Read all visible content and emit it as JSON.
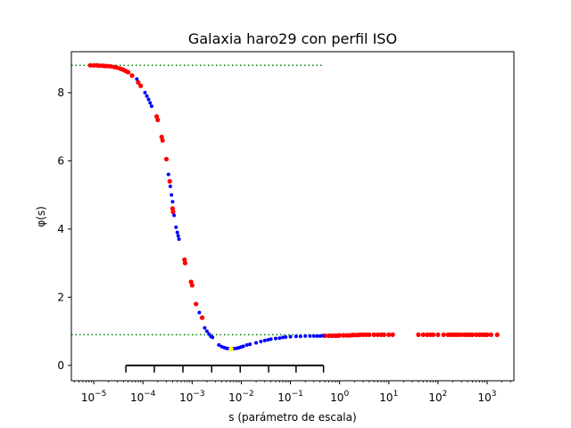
{
  "chart_data": {
    "type": "scatter",
    "title": "Galaxia haro29 con perfil ISO",
    "xlabel": "s (parámetro de escala)",
    "ylabel": "φ(s)",
    "xscale": "log",
    "xlim": [
      3.5e-06,
      3500
    ],
    "ylim": [
      -0.45,
      9.2
    ],
    "yticks": [
      0,
      2,
      4,
      6,
      8
    ],
    "xtick_labels": [
      {
        "base": "10",
        "exp": "−5",
        "value": 1e-05
      },
      {
        "base": "10",
        "exp": "−4",
        "value": 0.0001
      },
      {
        "base": "10",
        "exp": "−3",
        "value": 0.001
      },
      {
        "base": "10",
        "exp": "−2",
        "value": 0.01
      },
      {
        "base": "10",
        "exp": "−1",
        "value": 0.1
      },
      {
        "base": "10",
        "exp": "0",
        "value": 1
      },
      {
        "base": "10",
        "exp": "1",
        "value": 10
      },
      {
        "base": "10",
        "exp": "2",
        "value": 100
      },
      {
        "base": "10",
        "exp": "3",
        "value": 1000
      }
    ],
    "reference_lines": [
      {
        "y": 8.8,
        "x_from": 3.5e-06,
        "x_to": 0.47,
        "color": "#008000",
        "style": "dotted"
      },
      {
        "y": 0.9,
        "x_from": 3.5e-06,
        "x_to": 0.47,
        "color": "#008000",
        "style": "dotted"
      }
    ],
    "scale_bar": {
      "y": 0.0,
      "x_from": 4.5e-05,
      "x_to": 0.47,
      "ticks": [
        4.5e-05,
        0.00017,
        0.00065,
        0.0025,
        0.0095,
        0.036,
        0.13,
        0.47
      ]
    },
    "minimum_point": {
      "x": 0.0062,
      "y": 0.48,
      "color": "#ffff00"
    },
    "series": [
      {
        "color": "#ff0000",
        "points": [
          [
            8.5e-06,
            8.8
          ],
          [
            1e-05,
            8.8
          ],
          [
            1.15e-05,
            8.8
          ],
          [
            1.3e-05,
            8.79
          ],
          [
            1.5e-05,
            8.79
          ],
          [
            1.7e-05,
            8.78
          ],
          [
            1.9e-05,
            8.78
          ],
          [
            2.2e-05,
            8.77
          ],
          [
            2.6e-05,
            8.75
          ],
          [
            3e-05,
            8.73
          ],
          [
            3.5e-05,
            8.7
          ],
          [
            4e-05,
            8.67
          ],
          [
            4.5e-05,
            8.63
          ],
          [
            5e-05,
            8.6
          ],
          [
            6e-05,
            8.5
          ],
          [
            8e-05,
            8.3
          ],
          [
            9e-05,
            8.2
          ],
          [
            0.00019,
            7.3
          ],
          [
            0.0002,
            7.2
          ],
          [
            0.00024,
            6.7
          ],
          [
            0.00025,
            6.6
          ],
          [
            0.0003,
            6.05
          ],
          [
            0.00035,
            5.4
          ],
          [
            0.0004,
            4.6
          ],
          [
            0.00041,
            4.5
          ],
          [
            0.0007,
            3.1
          ],
          [
            0.00072,
            3.0
          ],
          [
            0.00095,
            2.45
          ],
          [
            0.001,
            2.35
          ],
          [
            0.0012,
            1.8
          ],
          [
            0.0016,
            1.4
          ],
          [
            0.5,
            0.87
          ],
          [
            0.6,
            0.87
          ],
          [
            0.7,
            0.87
          ],
          [
            0.8,
            0.87
          ],
          [
            0.9,
            0.87
          ],
          [
            1.0,
            0.88
          ],
          [
            1.2,
            0.88
          ],
          [
            1.4,
            0.88
          ],
          [
            1.6,
            0.88
          ],
          [
            1.8,
            0.89
          ],
          [
            2.0,
            0.89
          ],
          [
            2.3,
            0.89
          ],
          [
            2.6,
            0.9
          ],
          [
            3.0,
            0.9
          ],
          [
            3.5,
            0.9
          ],
          [
            4.0,
            0.9
          ],
          [
            5.0,
            0.9
          ],
          [
            6.0,
            0.9
          ],
          [
            7.0,
            0.9
          ],
          [
            8.0,
            0.9
          ],
          [
            10.0,
            0.9
          ],
          [
            12.0,
            0.9
          ],
          [
            40,
            0.9
          ],
          [
            50,
            0.9
          ],
          [
            60,
            0.9
          ],
          [
            70,
            0.9
          ],
          [
            80,
            0.9
          ],
          [
            100,
            0.9
          ],
          [
            130,
            0.9
          ],
          [
            160,
            0.9
          ],
          [
            180,
            0.9
          ],
          [
            200,
            0.9
          ],
          [
            230,
            0.9
          ],
          [
            260,
            0.9
          ],
          [
            300,
            0.9
          ],
          [
            350,
            0.9
          ],
          [
            400,
            0.9
          ],
          [
            450,
            0.9
          ],
          [
            500,
            0.9
          ],
          [
            600,
            0.9
          ],
          [
            700,
            0.9
          ],
          [
            800,
            0.9
          ],
          [
            900,
            0.9
          ],
          [
            1000,
            0.9
          ],
          [
            1200,
            0.9
          ],
          [
            1600,
            0.9
          ]
        ]
      },
      {
        "color": "#0000ff",
        "points": [
          [
            7.5e-05,
            8.4
          ],
          [
            0.00011,
            8.0
          ],
          [
            0.00012,
            7.9
          ],
          [
            0.00013,
            7.8
          ],
          [
            0.00014,
            7.7
          ],
          [
            0.00015,
            7.6
          ],
          [
            0.00033,
            5.6
          ],
          [
            0.00036,
            5.25
          ],
          [
            0.00038,
            5.0
          ],
          [
            0.0004,
            4.8
          ],
          [
            0.00043,
            4.4
          ],
          [
            0.00047,
            4.05
          ],
          [
            0.0005,
            3.9
          ],
          [
            0.00052,
            3.8
          ],
          [
            0.00054,
            3.7
          ],
          [
            0.0014,
            1.55
          ],
          [
            0.0018,
            1.1
          ],
          [
            0.002,
            1.0
          ],
          [
            0.0022,
            0.92
          ],
          [
            0.0024,
            0.85
          ],
          [
            0.0026,
            0.82
          ],
          [
            0.0035,
            0.6
          ],
          [
            0.004,
            0.55
          ],
          [
            0.0045,
            0.52
          ],
          [
            0.005,
            0.5
          ],
          [
            0.0055,
            0.49
          ],
          [
            0.007,
            0.49
          ],
          [
            0.008,
            0.5
          ],
          [
            0.009,
            0.52
          ],
          [
            0.01,
            0.54
          ],
          [
            0.011,
            0.56
          ],
          [
            0.013,
            0.6
          ],
          [
            0.015,
            0.62
          ],
          [
            0.02,
            0.66
          ],
          [
            0.025,
            0.7
          ],
          [
            0.03,
            0.73
          ],
          [
            0.035,
            0.75
          ],
          [
            0.04,
            0.77
          ],
          [
            0.05,
            0.79
          ],
          [
            0.06,
            0.8
          ],
          [
            0.07,
            0.82
          ],
          [
            0.08,
            0.83
          ],
          [
            0.1,
            0.84
          ],
          [
            0.13,
            0.85
          ],
          [
            0.16,
            0.85
          ],
          [
            0.2,
            0.86
          ],
          [
            0.25,
            0.86
          ],
          [
            0.3,
            0.86
          ],
          [
            0.35,
            0.86
          ],
          [
            0.4,
            0.86
          ],
          [
            0.45,
            0.87
          ]
        ]
      }
    ]
  }
}
